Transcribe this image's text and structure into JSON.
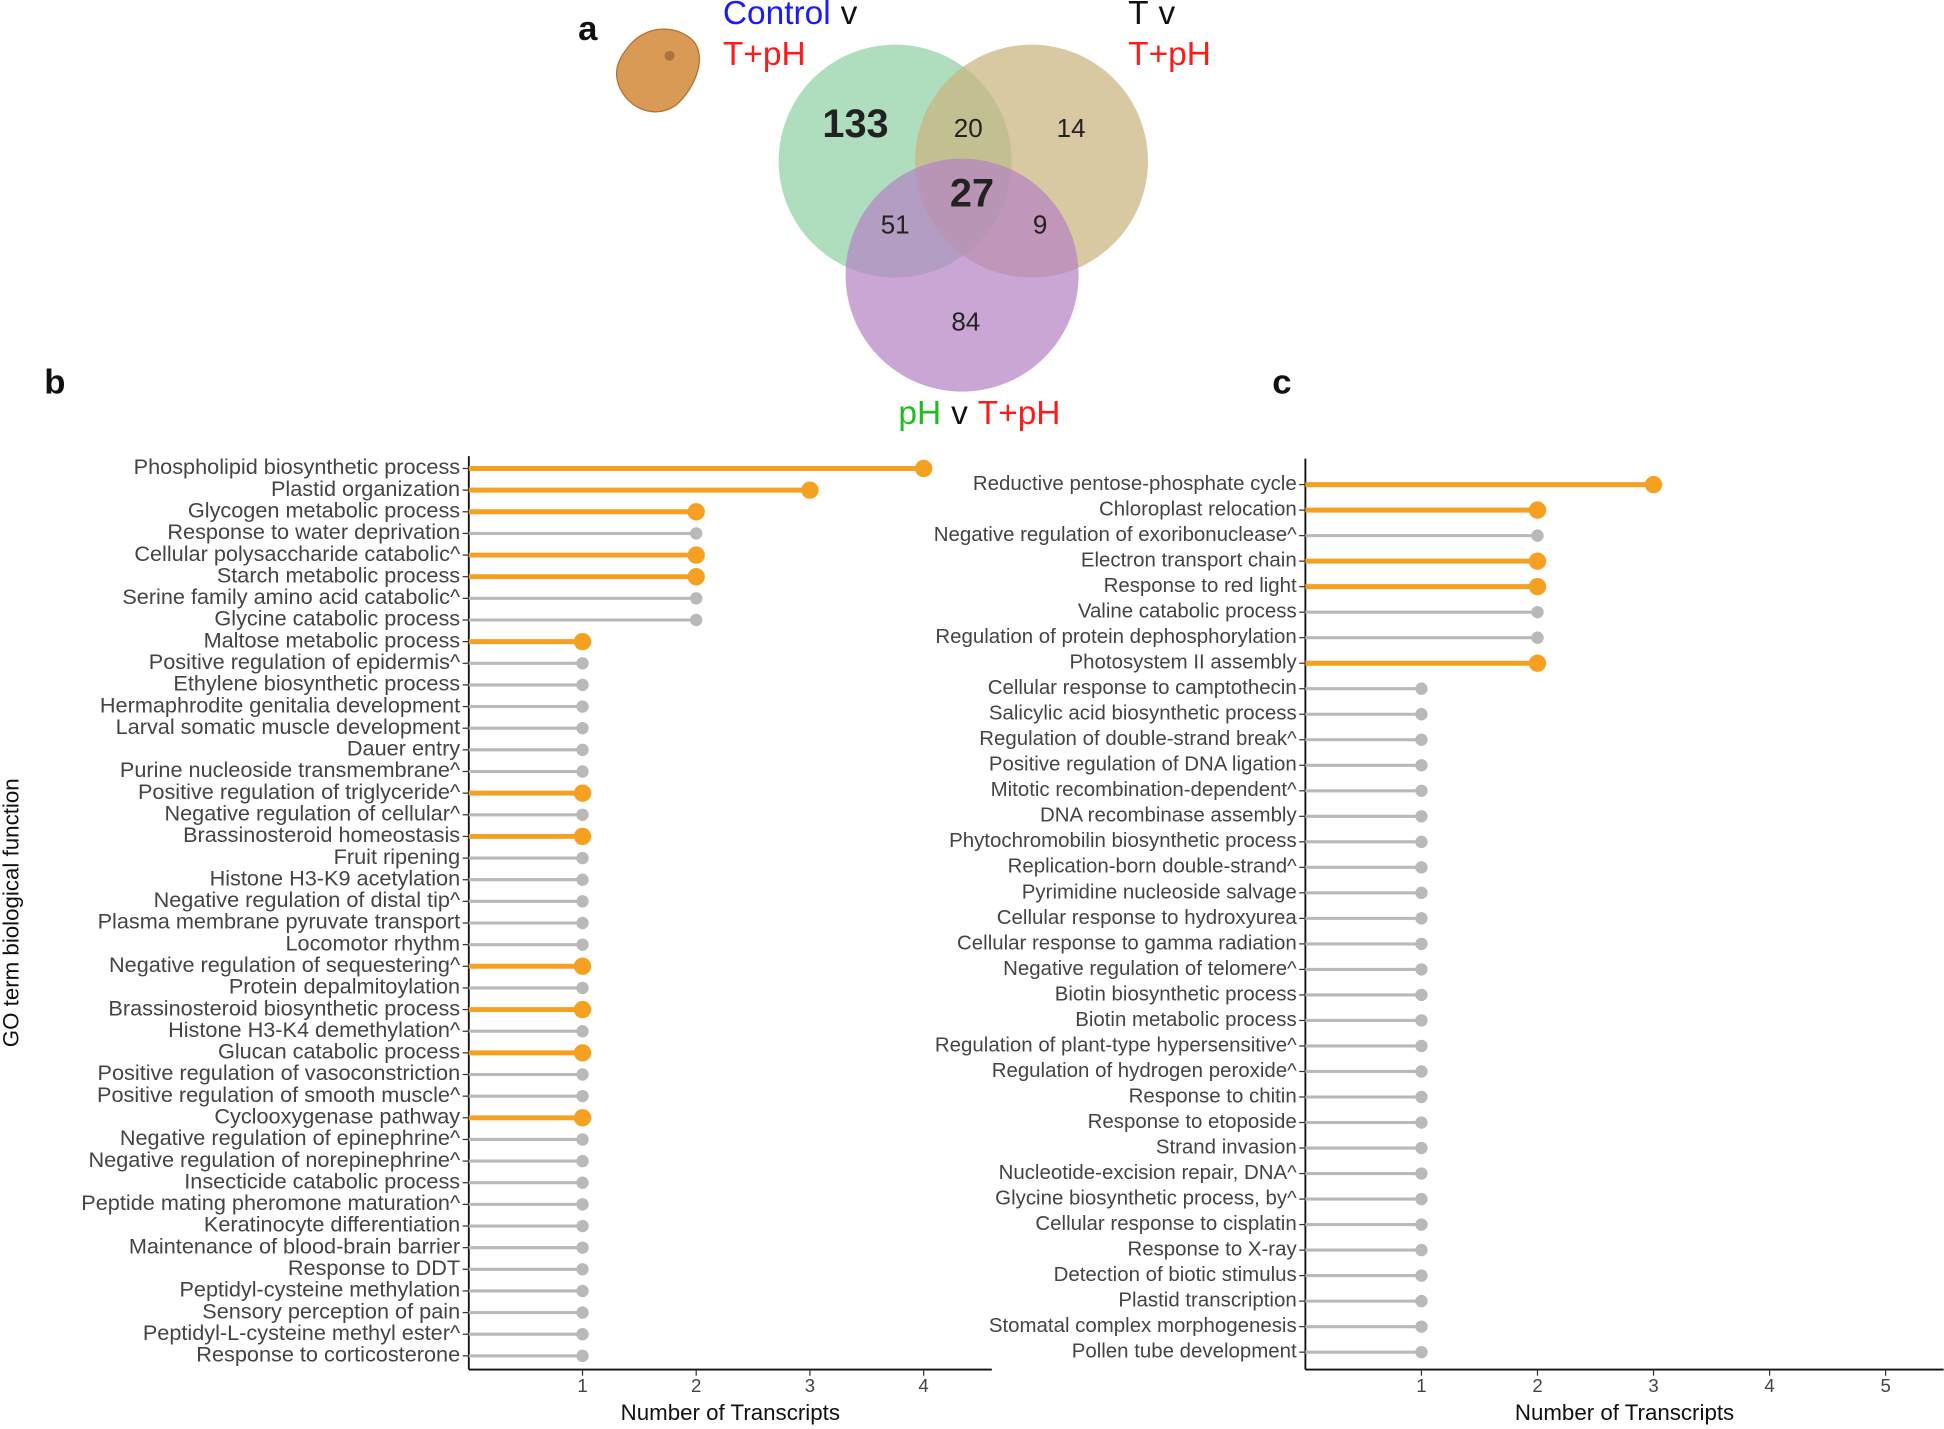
{
  "chart_data": [
    {
      "type": "venn",
      "panel": "a",
      "sets": [
        {
          "color": "#8fd1a5",
          "lines": [
            [
              {
                "text": "Control",
                "color": "#1a1aff"
              },
              {
                "text": "v",
                "color": "#111111"
              }
            ],
            [
              {
                "text": "T+pH",
                "color": "#ff1a1a"
              }
            ]
          ]
        },
        {
          "color": "#cbb47f",
          "lines": [
            [
              {
                "text": "T",
                "color": "#111111"
              },
              {
                "text": "v",
                "color": "#111111"
              }
            ],
            [
              {
                "text": "T+pH",
                "color": "#ff1a1a"
              }
            ]
          ]
        },
        {
          "color": "#b583c4",
          "lines": [
            [
              {
                "text": "pH",
                "color": "#22bb22"
              },
              {
                "text": "v",
                "color": "#111111"
              },
              {
                "text": "T+pH",
                "color": "#ff1a1a"
              }
            ]
          ]
        }
      ],
      "regions": [
        {
          "sets": [
            0
          ],
          "value": 133,
          "bold": true
        },
        {
          "sets": [
            0,
            1
          ],
          "value": 20,
          "bold": false
        },
        {
          "sets": [
            1
          ],
          "value": 14,
          "bold": false
        },
        {
          "sets": [
            0,
            1,
            2
          ],
          "value": 27,
          "bold": true
        },
        {
          "sets": [
            0,
            2
          ],
          "value": 51,
          "bold": false
        },
        {
          "sets": [
            1,
            2
          ],
          "value": 9,
          "bold": false
        },
        {
          "sets": [
            2
          ],
          "value": 84,
          "bold": false
        }
      ]
    },
    {
      "type": "lollipop",
      "panel": "b",
      "x_label": "Number of Transcripts",
      "y_label": "GO term biological function",
      "xlim": [
        0,
        4.6
      ],
      "xticks": [
        1,
        2,
        3,
        4
      ],
      "highlight_color": "#f5a020",
      "base_color": "#b9b9b9",
      "categories": [
        "Phospholipid biosynthetic process",
        "Plastid organization",
        "Glycogen metabolic process",
        "Response to water deprivation",
        "Cellular polysaccharide catabolic^",
        "Starch metabolic process",
        "Serine family amino acid catabolic^",
        "Glycine catabolic process",
        "Maltose metabolic process",
        "Positive regulation of epidermis^",
        "Ethylene biosynthetic process",
        "Hermaphrodite genitalia development",
        "Larval somatic muscle development",
        "Dauer entry",
        "Purine nucleoside transmembrane^",
        "Positive regulation of triglyceride^",
        "Negative regulation of cellular^",
        "Brassinosteroid homeostasis",
        "Fruit ripening",
        "Histone H3-K9 acetylation",
        "Negative regulation of distal tip^",
        "Plasma membrane pyruvate transport",
        "Locomotor rhythm",
        "Negative regulation of sequestering^",
        "Protein depalmitoylation",
        "Brassinosteroid biosynthetic process",
        "Histone H3-K4 demethylation^",
        "Glucan catabolic process",
        "Positive regulation of vasoconstriction",
        "Positive regulation of smooth muscle^",
        "Cyclooxygenase pathway",
        "Negative regulation of epinephrine^",
        "Negative regulation of norepinephrine^",
        "Insecticide catabolic process",
        "Peptide mating pheromone maturation^",
        "Keratinocyte differentiation",
        "Maintenance of blood-brain barrier",
        "Response to DDT",
        "Peptidyl-cysteine methylation",
        "Sensory perception of pain",
        "Peptidyl-L-cysteine methyl ester^",
        "Response to corticosterone"
      ],
      "values": [
        4,
        3,
        2,
        2,
        2,
        2,
        2,
        2,
        1,
        1,
        1,
        1,
        1,
        1,
        1,
        1,
        1,
        1,
        1,
        1,
        1,
        1,
        1,
        1,
        1,
        1,
        1,
        1,
        1,
        1,
        1,
        1,
        1,
        1,
        1,
        1,
        1,
        1,
        1,
        1,
        1,
        1
      ],
      "highlight": [
        true,
        true,
        true,
        false,
        true,
        true,
        false,
        false,
        true,
        false,
        false,
        false,
        false,
        false,
        false,
        true,
        false,
        true,
        false,
        false,
        false,
        false,
        false,
        true,
        false,
        true,
        false,
        true,
        false,
        false,
        true,
        false,
        false,
        false,
        false,
        false,
        false,
        false,
        false,
        false,
        false,
        false
      ]
    },
    {
      "type": "lollipop",
      "panel": "c",
      "x_label": "Number of Transcripts",
      "xlim": [
        0,
        5.5
      ],
      "xticks": [
        1,
        2,
        3,
        4,
        5
      ],
      "highlight_color": "#f5a020",
      "base_color": "#b9b9b9",
      "categories": [
        "Reductive pentose-phosphate cycle",
        "Chloroplast relocation",
        "Negative regulation of exoribonuclease^",
        "Electron transport chain",
        "Response to red light",
        "Valine catabolic process",
        "Regulation of protein dephosphorylation",
        "Photosystem II assembly",
        "Cellular response to camptothecin",
        "Salicylic acid biosynthetic process",
        "Regulation of double-strand break^",
        "Positive regulation of DNA ligation",
        "Mitotic recombination-dependent^",
        "DNA recombinase assembly",
        "Phytochromobilin biosynthetic process",
        "Replication-born double-strand^",
        "Pyrimidine nucleoside salvage",
        "Cellular response to hydroxyurea",
        "Cellular response to gamma radiation",
        "Negative regulation of telomere^",
        "Biotin biosynthetic process",
        "Biotin metabolic process",
        "Regulation of plant-type hypersensitive^",
        "Regulation of hydrogen peroxide^",
        "Response to chitin",
        "Response to etoposide",
        "Strand invasion",
        "Nucleotide-excision repair, DNA^",
        "Glycine biosynthetic process, by^",
        "Cellular response to cisplatin",
        "Response to X-ray",
        "Detection of biotic stimulus",
        "Plastid transcription",
        "Stomatal complex morphogenesis",
        "Pollen tube development"
      ],
      "values": [
        3,
        2,
        2,
        2,
        2,
        2,
        2,
        2,
        1,
        1,
        1,
        1,
        1,
        1,
        1,
        1,
        1,
        1,
        1,
        1,
        1,
        1,
        1,
        1,
        1,
        1,
        1,
        1,
        1,
        1,
        1,
        1,
        1,
        1,
        1
      ],
      "highlight": [
        true,
        true,
        false,
        true,
        true,
        false,
        false,
        true,
        false,
        false,
        false,
        false,
        false,
        false,
        false,
        false,
        false,
        false,
        false,
        false,
        false,
        false,
        false,
        false,
        false,
        false,
        false,
        false,
        false,
        false,
        false,
        false,
        false,
        false,
        false
      ]
    }
  ]
}
